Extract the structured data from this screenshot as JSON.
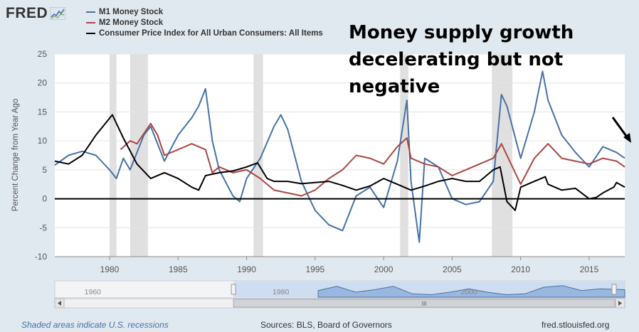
{
  "logo_text": "FRED",
  "annotation": "Money supply growth decelerating but not negative",
  "footer": {
    "recessions_note": "Shaded areas indicate U.S. recessions",
    "sources": "Sources: BLS, Board of Governors",
    "site": "fred.stlouisfed.org"
  },
  "navigator": {
    "labels": [
      "1960",
      "1980",
      "2000"
    ],
    "grip": "III"
  },
  "colors": {
    "m1": "#4572a7",
    "m2": "#aa4643",
    "cpi": "#000000",
    "recession": "#e0e0e0",
    "background": "#e1e9f0"
  },
  "chart_data": {
    "type": "line",
    "title": "",
    "xlabel": "",
    "ylabel": "Percent Change from Year Ago",
    "xlim": [
      1976.0,
      2017.6
    ],
    "ylim": [
      -10,
      25
    ],
    "x_ticks": [
      "1980",
      "1985",
      "1990",
      "1995",
      "2000",
      "2005",
      "2010",
      "2015"
    ],
    "y_ticks": [
      "25",
      "20",
      "15",
      "10",
      "5",
      "0",
      "-5",
      "-10"
    ],
    "legend": "top-left",
    "recessions": [
      [
        1980.0,
        1980.5
      ],
      [
        1981.5,
        1982.8
      ],
      [
        1990.5,
        1991.2
      ],
      [
        2001.2,
        2001.8
      ],
      [
        2007.9,
        2009.4
      ]
    ],
    "series": [
      {
        "name": "M1 Money Stock",
        "color": "#4572a7",
        "x": [
          1976,
          1977,
          1978,
          1979,
          1980,
          1980.5,
          1981,
          1981.5,
          1982,
          1982.5,
          1983,
          1984,
          1985,
          1986,
          1986.5,
          1987,
          1987.5,
          1988,
          1989,
          1989.5,
          1990,
          1991,
          1992,
          1992.5,
          1993,
          1994,
          1995,
          1996,
          1997,
          1998,
          1999,
          2000,
          2001,
          2001.7,
          2002,
          2002.6,
          2003,
          2004,
          2005,
          2006,
          2007,
          2008,
          2008.6,
          2009,
          2010,
          2011,
          2011.6,
          2012,
          2013,
          2014,
          2015,
          2016,
          2017,
          2017.6
        ],
        "values": [
          5.8,
          7.5,
          8.2,
          7.5,
          5.0,
          3.5,
          7.0,
          5.0,
          8.0,
          11.0,
          12.5,
          6.5,
          11.0,
          14.0,
          16.0,
          19.0,
          10.0,
          5.0,
          0.5,
          -0.5,
          3.5,
          7.0,
          12.5,
          14.5,
          12.0,
          3.0,
          -2.0,
          -4.5,
          -5.5,
          0.5,
          2.0,
          -1.5,
          6.5,
          17.0,
          3.0,
          -7.5,
          7.0,
          5.5,
          0.0,
          -1.0,
          -0.5,
          3.0,
          18.0,
          16.0,
          7.0,
          15.0,
          22.0,
          17.0,
          11.0,
          8.0,
          5.5,
          9.0,
          8.0,
          7.0
        ]
      },
      {
        "name": "M2 Money Stock",
        "color": "#aa4643",
        "x": [
          1980.8,
          1981.5,
          1982,
          1983,
          1983.5,
          1984,
          1985,
          1986,
          1987,
          1987.5,
          1988,
          1989,
          1990,
          1991,
          1992,
          1993,
          1994,
          1995,
          1996,
          1997,
          1998,
          1999,
          2000,
          2001,
          2001.7,
          2002,
          2003,
          2004,
          2005,
          2006,
          2007,
          2008,
          2008.6,
          2009,
          2010,
          2011,
          2012,
          2013,
          2014,
          2015,
          2016,
          2017,
          2017.6
        ],
        "values": [
          8.5,
          10.0,
          9.5,
          13.0,
          11.0,
          7.5,
          8.5,
          9.5,
          8.5,
          4.5,
          5.5,
          4.5,
          5.0,
          3.5,
          1.5,
          1.0,
          0.5,
          1.5,
          3.5,
          5.0,
          7.5,
          7.0,
          6.0,
          9.0,
          10.5,
          7.0,
          6.0,
          5.5,
          4.0,
          5.0,
          6.0,
          7.0,
          9.5,
          7.5,
          2.5,
          7.0,
          9.5,
          7.0,
          6.5,
          6.0,
          7.0,
          6.5,
          5.5
        ]
      },
      {
        "name": "Consumer Price Index for All Urban Consumers: All Items",
        "color": "#000000",
        "x": [
          1976,
          1977,
          1978,
          1979,
          1980.2,
          1981,
          1982,
          1983,
          1984,
          1985,
          1986,
          1986.5,
          1987,
          1988,
          1989,
          1990,
          1990.8,
          1991.5,
          1992,
          1993,
          1994,
          1995,
          1996,
          1997,
          1998,
          1999,
          2000,
          2001,
          2002,
          2003,
          2004,
          2005,
          2006,
          2007,
          2008,
          2008.5,
          2009,
          2009.6,
          2010,
          2011,
          2011.8,
          2012,
          2013,
          2014,
          2015,
          2015.5,
          2016,
          2016.8,
          2017,
          2017.6
        ],
        "values": [
          6.5,
          6.0,
          7.5,
          11.0,
          14.5,
          10.5,
          6.0,
          3.5,
          4.5,
          3.5,
          2.0,
          1.5,
          4.0,
          4.5,
          4.8,
          5.5,
          6.2,
          3.5,
          3.0,
          3.0,
          2.6,
          2.8,
          3.0,
          2.3,
          1.5,
          2.2,
          3.5,
          2.5,
          1.5,
          2.2,
          3.0,
          3.5,
          3.0,
          3.0,
          5.0,
          5.5,
          -0.5,
          -2.0,
          2.0,
          3.0,
          3.8,
          2.5,
          1.5,
          1.8,
          0.0,
          0.2,
          1.0,
          2.0,
          2.8,
          2.0
        ]
      }
    ]
  },
  "navigator_data": {
    "x": [
      1985.0,
      1987.0,
      1989.0,
      1991.0,
      1993.0,
      1995.0,
      1997.0,
      1999.0,
      2001.0,
      2003.0,
      2005.0,
      2007.0,
      2009.0,
      2011.0,
      2013.0,
      2015.0,
      2017.6
    ],
    "values": [
      8,
      13,
      6,
      9,
      13,
      4,
      3,
      6,
      10,
      6,
      3,
      4,
      12,
      14,
      8,
      10,
      9
    ],
    "range": [
      1957,
      2017.6
    ],
    "window": [
      1976.0,
      2017.6
    ]
  }
}
